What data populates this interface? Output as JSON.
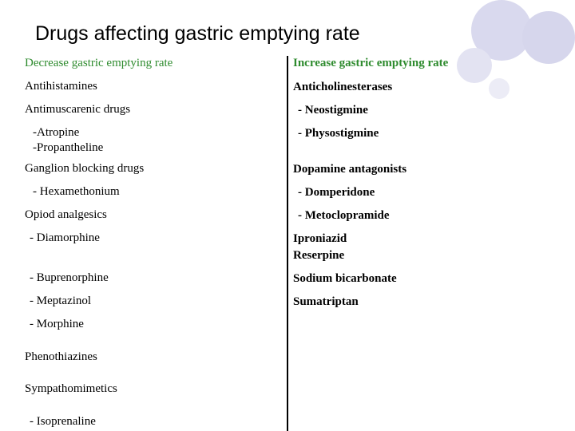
{
  "title": "Drugs affecting gastric emptying rate",
  "left_column": {
    "header": "Decrease gastric emptying rate",
    "items": [
      "Antihistamines",
      "Antimuscarenic drugs",
      "-Atropine",
      "-Propantheline",
      "Ganglion blocking drugs",
      "- Hexamethonium",
      "Opiod analgesics",
      "- Diamorphine",
      "- Buprenorphine",
      "- Meptazinol",
      "- Morphine",
      "Phenothiazines",
      "Sympathomimetics",
      "- Isoprenaline"
    ]
  },
  "right_column": {
    "header": "Increase gastric emptying rate",
    "items": [
      "Anticholinesterases",
      "-  Neostigmine",
      "- Physostigmine",
      "Dopamine antagonists",
      "- Domperidone",
      "- Metoclopramide",
      "Iproniazid",
      "Reserpine",
      "Sodium bicarbonate",
      "Sumatriptan"
    ]
  }
}
